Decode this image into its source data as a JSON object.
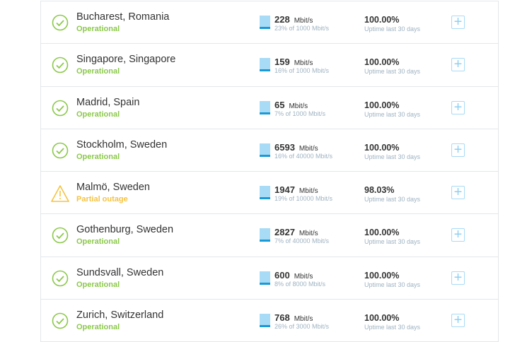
{
  "colors": {
    "operational": "#8cc84b",
    "partial": "#f5c342",
    "bar": "#a8dbf6",
    "bar_fill": "#1a9ad6"
  },
  "uptime_label": "Uptime last 30 days",
  "unit": "Mbit/s",
  "rows": [
    {
      "name": "Bucharest, Romania",
      "status": "Operational",
      "icon": "check-circle-icon",
      "speed": "228",
      "capacity": "23% of 1000 Mbit/s",
      "uptime": "100.00%"
    },
    {
      "name": "Singapore, Singapore",
      "status": "Operational",
      "icon": "check-circle-icon",
      "speed": "159",
      "capacity": "16% of 1000 Mbit/s",
      "uptime": "100.00%"
    },
    {
      "name": "Madrid, Spain",
      "status": "Operational",
      "icon": "check-circle-icon",
      "speed": "65",
      "capacity": "7% of 1000 Mbit/s",
      "uptime": "100.00%"
    },
    {
      "name": "Stockholm, Sweden",
      "status": "Operational",
      "icon": "check-circle-icon",
      "speed": "6593",
      "capacity": "16% of 40000 Mbit/s",
      "uptime": "100.00%"
    },
    {
      "name": "Malmö, Sweden",
      "status": "Partial outage",
      "icon": "warning-triangle-icon",
      "speed": "1947",
      "capacity": "19% of 10000 Mbit/s",
      "uptime": "98.03%"
    },
    {
      "name": "Gothenburg, Sweden",
      "status": "Operational",
      "icon": "check-circle-icon",
      "speed": "2827",
      "capacity": "7% of 40000 Mbit/s",
      "uptime": "100.00%"
    },
    {
      "name": "Sundsvall, Sweden",
      "status": "Operational",
      "icon": "check-circle-icon",
      "speed": "600",
      "capacity": "8% of 8000 Mbit/s",
      "uptime": "100.00%"
    },
    {
      "name": "Zurich, Switzerland",
      "status": "Operational",
      "icon": "check-circle-icon",
      "speed": "768",
      "capacity": "26% of 3000 Mbit/s",
      "uptime": "100.00%"
    }
  ]
}
